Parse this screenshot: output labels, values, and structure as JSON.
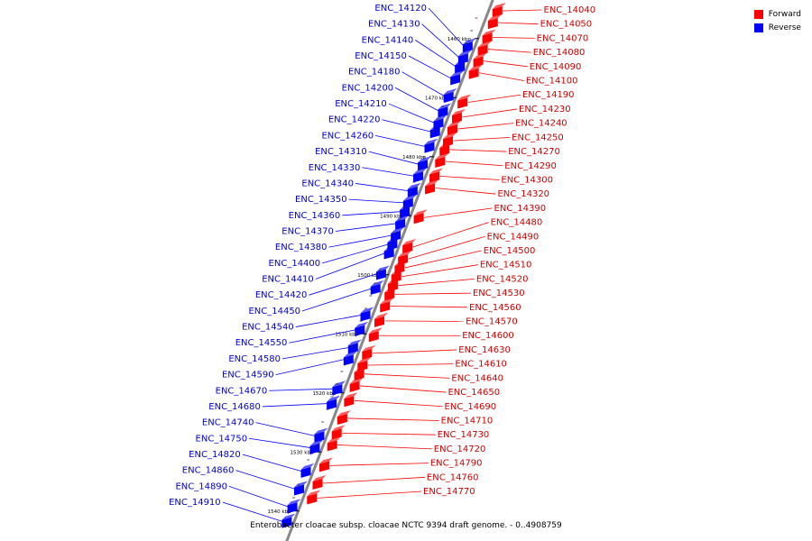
{
  "title": "Enterobacter cloacae subsp. cloacae NCTC 9394 draft genome. - 0..4908759",
  "colors": {
    "forward": "#ff0000",
    "reverse": "#0000ff",
    "backbone": "#888888",
    "label_forward": "#cc0000",
    "label_reverse": "#0000cc"
  },
  "legend": [
    {
      "label": "Forward",
      "color": "#ff0000"
    },
    {
      "label": "Reverse",
      "color": "#0000ff"
    }
  ],
  "ticks": [
    {
      "label": "1460 kbp",
      "kbp": 1460
    },
    {
      "label": "1470 kbp",
      "kbp": 1470
    },
    {
      "label": "1480 kbp",
      "kbp": 1480
    },
    {
      "label": "1490 kbp",
      "kbp": 1490
    },
    {
      "label": "1500 kbp",
      "kbp": 1500
    },
    {
      "label": "1510 kbp",
      "kbp": 1510
    },
    {
      "label": "1520 kbp",
      "kbp": 1520
    },
    {
      "label": "1530 kbp",
      "kbp": 1530
    },
    {
      "label": "1540 kbp",
      "kbp": 1540
    }
  ],
  "reverse_genes": [
    {
      "name": "ENC_14120",
      "kbp": 1461
    },
    {
      "name": "ENC_14130",
      "kbp": 1463
    },
    {
      "name": "ENC_14140",
      "kbp": 1464.5
    },
    {
      "name": "ENC_14150",
      "kbp": 1466.5
    },
    {
      "name": "ENC_14180",
      "kbp": 1469.5
    },
    {
      "name": "ENC_14200",
      "kbp": 1472
    },
    {
      "name": "ENC_14210",
      "kbp": 1474
    },
    {
      "name": "ENC_14220",
      "kbp": 1475.5
    },
    {
      "name": "ENC_14260",
      "kbp": 1478
    },
    {
      "name": "ENC_14310",
      "kbp": 1481
    },
    {
      "name": "ENC_14330",
      "kbp": 1483
    },
    {
      "name": "ENC_14340",
      "kbp": 1485.5
    },
    {
      "name": "ENC_14350",
      "kbp": 1487.5
    },
    {
      "name": "ENC_14360",
      "kbp": 1489
    },
    {
      "name": "ENC_14370",
      "kbp": 1491
    },
    {
      "name": "ENC_14380",
      "kbp": 1493
    },
    {
      "name": "ENC_14400",
      "kbp": 1494.5
    },
    {
      "name": "ENC_14410",
      "kbp": 1496
    },
    {
      "name": "ENC_14420",
      "kbp": 1499.5
    },
    {
      "name": "ENC_14450",
      "kbp": 1502
    },
    {
      "name": "ENC_14540",
      "kbp": 1506.5
    },
    {
      "name": "ENC_14550",
      "kbp": 1509
    },
    {
      "name": "ENC_14580",
      "kbp": 1512
    },
    {
      "name": "ENC_14590",
      "kbp": 1514
    },
    {
      "name": "ENC_14670",
      "kbp": 1519
    },
    {
      "name": "ENC_14680",
      "kbp": 1521.5
    },
    {
      "name": "ENC_14740",
      "kbp": 1527
    },
    {
      "name": "ENC_14750",
      "kbp": 1529
    },
    {
      "name": "ENC_14820",
      "kbp": 1533
    },
    {
      "name": "ENC_14860",
      "kbp": 1536
    },
    {
      "name": "ENC_14890",
      "kbp": 1539
    },
    {
      "name": "ENC_14910",
      "kbp": 1541.5
    }
  ],
  "forward_genes": [
    {
      "name": "ENC_14040",
      "kbp": 1455
    },
    {
      "name": "ENC_14050",
      "kbp": 1457
    },
    {
      "name": "ENC_14070",
      "kbp": 1459.5
    },
    {
      "name": "ENC_14080",
      "kbp": 1461.5
    },
    {
      "name": "ENC_14090",
      "kbp": 1463.5
    },
    {
      "name": "ENC_14100",
      "kbp": 1465.5
    },
    {
      "name": "ENC_14190",
      "kbp": 1470.5
    },
    {
      "name": "ENC_14230",
      "kbp": 1473
    },
    {
      "name": "ENC_14240",
      "kbp": 1475
    },
    {
      "name": "ENC_14250",
      "kbp": 1477
    },
    {
      "name": "ENC_14270",
      "kbp": 1478.5
    },
    {
      "name": "ENC_14290",
      "kbp": 1480.5
    },
    {
      "name": "ENC_14300",
      "kbp": 1483
    },
    {
      "name": "ENC_14320",
      "kbp": 1485
    },
    {
      "name": "ENC_14390",
      "kbp": 1490
    },
    {
      "name": "ENC_14480",
      "kbp": 1495
    },
    {
      "name": "ENC_14490",
      "kbp": 1497
    },
    {
      "name": "ENC_14500",
      "kbp": 1498.5
    },
    {
      "name": "ENC_14510",
      "kbp": 1500
    },
    {
      "name": "ENC_14520",
      "kbp": 1501.5
    },
    {
      "name": "ENC_14530",
      "kbp": 1503
    },
    {
      "name": "ENC_14560",
      "kbp": 1505
    },
    {
      "name": "ENC_14570",
      "kbp": 1507.5
    },
    {
      "name": "ENC_14600",
      "kbp": 1510
    },
    {
      "name": "ENC_14630",
      "kbp": 1513
    },
    {
      "name": "ENC_14610",
      "kbp": 1515
    },
    {
      "name": "ENC_14640",
      "kbp": 1516.5
    },
    {
      "name": "ENC_14650",
      "kbp": 1518.5
    },
    {
      "name": "ENC_14690",
      "kbp": 1521
    },
    {
      "name": "ENC_14710",
      "kbp": 1524
    },
    {
      "name": "ENC_14730",
      "kbp": 1526.5
    },
    {
      "name": "ENC_14720",
      "kbp": 1528.5
    },
    {
      "name": "ENC_14790",
      "kbp": 1532
    },
    {
      "name": "ENC_14760",
      "kbp": 1535
    },
    {
      "name": "ENC_14770",
      "kbp": 1537.5
    }
  ]
}
